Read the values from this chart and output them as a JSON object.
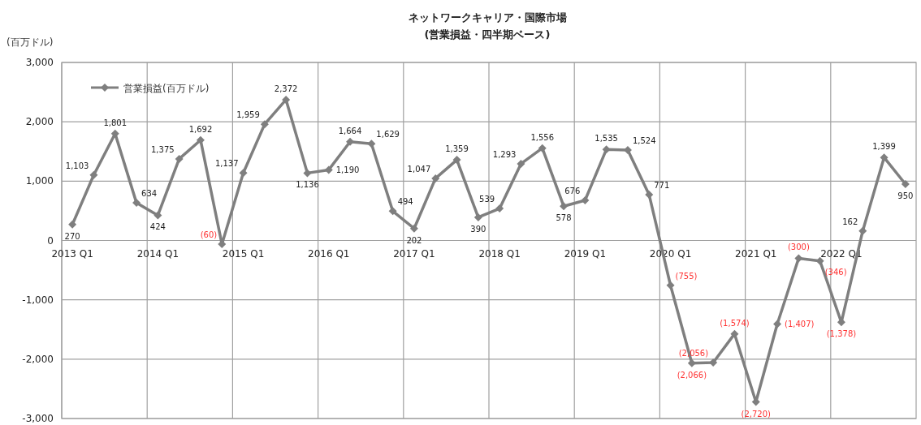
{
  "chart_data": {
    "type": "line",
    "title": "ネットワークキャリア・国際市場",
    "subtitle": "(営業損益・四半期ベース)",
    "ylabel": "(百万ドル)",
    "categories": [
      "2013 Q1",
      null,
      null,
      null,
      "2014 Q1",
      null,
      null,
      null,
      "2015 Q1",
      null,
      null,
      null,
      "2016 Q1",
      null,
      null,
      null,
      "2017 Q1",
      null,
      null,
      null,
      "2018 Q1",
      null,
      null,
      null,
      "2019 Q1",
      null,
      null,
      null,
      "2020 Q1",
      null,
      null,
      null,
      "2021 Q1",
      null,
      null,
      null,
      "2022 Q1",
      null,
      null,
      null
    ],
    "series": [
      {
        "name": "営業損益(百万ドル)",
        "color": "#7f7f7f",
        "values": [
          270,
          1103,
          1801,
          634,
          424,
          1375,
          1692,
          -60,
          1137,
          1959,
          2372,
          1136,
          1190,
          1664,
          1629,
          494,
          202,
          1047,
          1359,
          390,
          539,
          1293,
          1556,
          578,
          676,
          1535,
          1524,
          771,
          -755,
          -2066,
          -2056,
          -1574,
          -2720,
          -1407,
          -300,
          -346,
          -1378,
          162,
          1399,
          950
        ],
        "value_labels": [
          "270",
          "1,103",
          "1,801",
          "634",
          "424",
          "1,375",
          "1,692",
          "(60)",
          "1,137",
          "1,959",
          "2,372",
          "1,136",
          "1,190",
          "1,664",
          "1,629",
          "494",
          "202",
          "1,047",
          "1,359",
          "390",
          "539",
          "1,293",
          "1,556",
          "578",
          "676",
          "1,535",
          "1,524",
          "771",
          "(755)",
          "(2,066)",
          "(2,056)",
          "(1,574)",
          "(2,720)",
          "(1,407)",
          "(300)",
          "(346)",
          "(1,378)",
          "162",
          "1,399",
          "950"
        ]
      }
    ],
    "ylim": [
      -3000,
      3000
    ],
    "yticks": [
      {
        "value": -3000,
        "label": "-3,000"
      },
      {
        "value": -2000,
        "label": "-2,000"
      },
      {
        "value": -1000,
        "label": "-1,000"
      },
      {
        "value": 0,
        "label": "0"
      },
      {
        "value": 1000,
        "label": "1,000"
      },
      {
        "value": 2000,
        "label": "2,000"
      },
      {
        "value": 3000,
        "label": "3,000"
      }
    ],
    "grid": true,
    "legend": "top left",
    "marker": "diamond",
    "line_style": "solid"
  }
}
